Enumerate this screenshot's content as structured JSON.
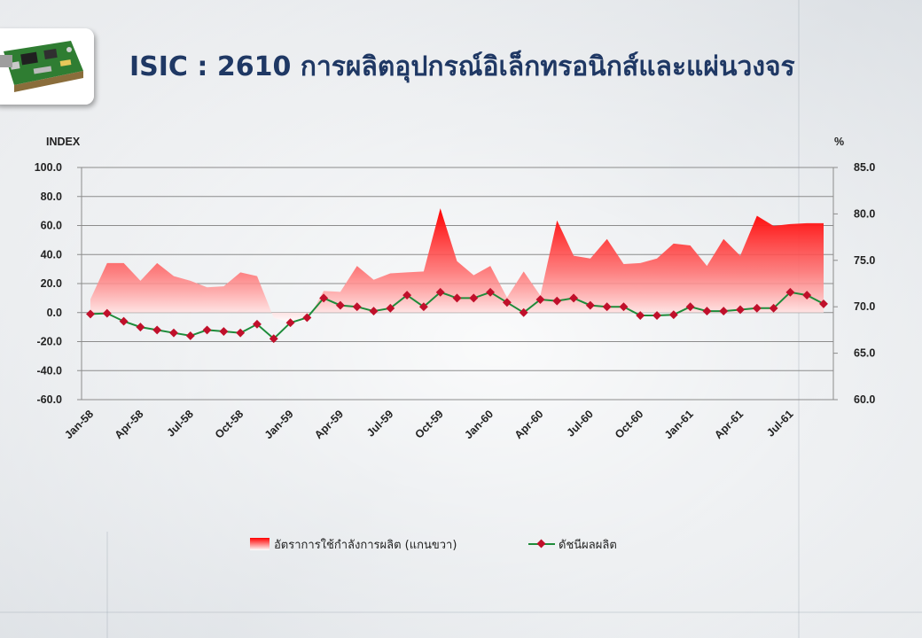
{
  "title": "ISIC : 2610 การผลิตอุปกรณ์อิเล็กทรอนิกส์และแผ่นวงจร",
  "thumbnail_icon": "circuit-board-icon",
  "colors": {
    "title": "#1f3864",
    "area": "#ff0000",
    "line": "#1e8c3a",
    "marker": "#c0102b"
  },
  "chart_data": {
    "type": "line",
    "left_axis": {
      "label": "INDEX",
      "min": -60,
      "max": 100,
      "step": 20,
      "ticks": [
        "100.0",
        "80.0",
        "60.0",
        "40.0",
        "20.0",
        "0.0",
        "-20.0",
        "-40.0",
        "-60.0"
      ]
    },
    "right_axis": {
      "label": "%",
      "min": 60,
      "max": 85,
      "step": 5,
      "ticks": [
        "85.0",
        "80.0",
        "75.0",
        "70.0",
        "65.0",
        "60.0"
      ]
    },
    "x_tick_labels": [
      "Jan-58",
      "Apr-58",
      "Jul-58",
      "Oct-58",
      "Jan-59",
      "Apr-59",
      "Jul-59",
      "Oct-59",
      "Jan-60",
      "Apr-60",
      "Jul-60",
      "Oct-60",
      "Jan-61",
      "Apr-61",
      "Jul-61"
    ],
    "x_tick_every": 3,
    "grid": true,
    "legend_position": "bottom",
    "series": [
      {
        "name": "อัตราการใช้กำลังการผลิต (แกนขวา)",
        "type": "area",
        "axis": "right",
        "values": [
          70.8,
          74.7,
          74.7,
          72.8,
          74.7,
          73.3,
          72.8,
          72.1,
          72.2,
          73.7,
          73.3,
          68.8,
          68.3,
          68.5,
          71.7,
          71.6,
          74.4,
          72.9,
          73.6,
          73.7,
          73.8,
          80.6,
          74.9,
          73.4,
          74.4,
          71.0,
          73.8,
          71.2,
          79.3,
          75.5,
          75.2,
          77.3,
          74.6,
          74.7,
          75.2,
          76.8,
          76.6,
          74.4,
          77.3,
          75.5,
          79.8,
          78.7,
          78.9,
          79.0,
          79.0
        ]
      },
      {
        "name": "ดัชนีผลผลิต",
        "type": "line",
        "axis": "left",
        "values": [
          -1,
          -0.5,
          -6,
          -10,
          -12,
          -14,
          -16,
          -12,
          -13,
          -14,
          -8,
          -18,
          -7,
          -3.5,
          10,
          5,
          4,
          1,
          3,
          12,
          4,
          14,
          10,
          10,
          14,
          7,
          0,
          9,
          8,
          10,
          5,
          4,
          4,
          -2,
          -2,
          -1.5,
          4,
          1,
          1,
          2,
          3,
          3,
          14,
          12,
          6
        ]
      }
    ]
  }
}
